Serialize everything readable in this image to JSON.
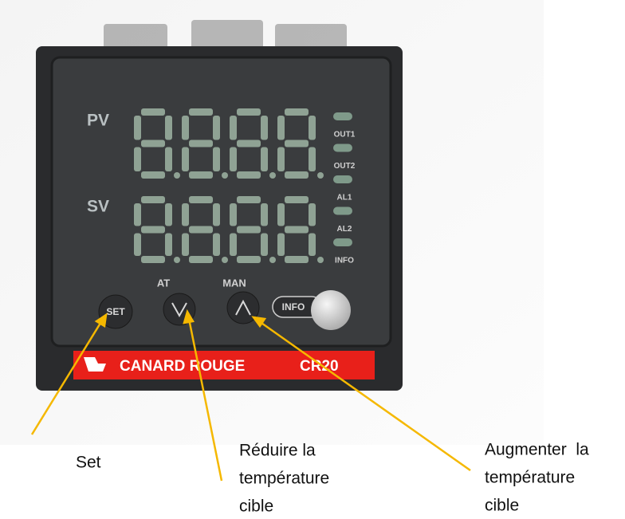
{
  "device": {
    "display_labels": {
      "pv": "PV",
      "sv": "SV"
    },
    "indicators": [
      "OUT1",
      "OUT2",
      "AL1",
      "AL2",
      "INFO"
    ],
    "button_labels": {
      "at": "AT",
      "man": "MAN",
      "set": "SET",
      "info": "INFO"
    },
    "brand": "CANARD ROUGE",
    "model": "CR20"
  },
  "callouts": [
    {
      "lines": [
        "Set"
      ]
    },
    {
      "lines": [
        "Réduire la",
        "température",
        "cible"
      ]
    },
    {
      "lines": [
        "Augmenter  la",
        "température",
        "cible"
      ]
    }
  ]
}
